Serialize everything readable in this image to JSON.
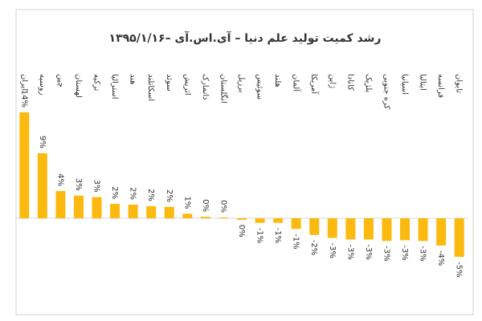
{
  "chart_data": {
    "type": "bar",
    "title": "رشد کمیت تولید علم دنیا – آی.اس.آی –۱۳۹۵/۱/۱۶",
    "categories": [
      "ایران",
      "روسیه",
      "چین",
      "لهستان",
      "ترکیه",
      "استرالیا",
      "هند",
      "اسکاتلند",
      "سوئد",
      "اتریش",
      "دانمارک",
      "انگلستان",
      "برزیل",
      "سوئیس",
      "هلند",
      "آلمان",
      "آمریکا",
      "ژاپن",
      "کانادا",
      "بلژیک",
      "کره جنوبی",
      "اسپانیا",
      "ایتالیا",
      "فرانسه",
      "تایوان"
    ],
    "values": [
      14,
      8.6,
      3.6,
      3.0,
      2.8,
      1.9,
      1.8,
      1.6,
      1.5,
      0.6,
      0.2,
      0.1,
      -0.2,
      -0.6,
      -0.6,
      -1.4,
      -2.2,
      -2.6,
      -2.8,
      -2.8,
      -3.0,
      -2.9,
      -3.0,
      -3.6,
      -5.1
    ],
    "value_labels": [
      "14%",
      "9%",
      "4%",
      "3%",
      "3%",
      "2%",
      "2%",
      "2%",
      "2%",
      "1%",
      "0%",
      "0%",
      "0%",
      "-1%",
      "-1%",
      "-1%",
      "-2%",
      "-3%",
      "-3%",
      "-3%",
      "-3%",
      "-3%",
      "-3%",
      "-4%",
      "-5%"
    ],
    "color": "#fcb90f"
  }
}
